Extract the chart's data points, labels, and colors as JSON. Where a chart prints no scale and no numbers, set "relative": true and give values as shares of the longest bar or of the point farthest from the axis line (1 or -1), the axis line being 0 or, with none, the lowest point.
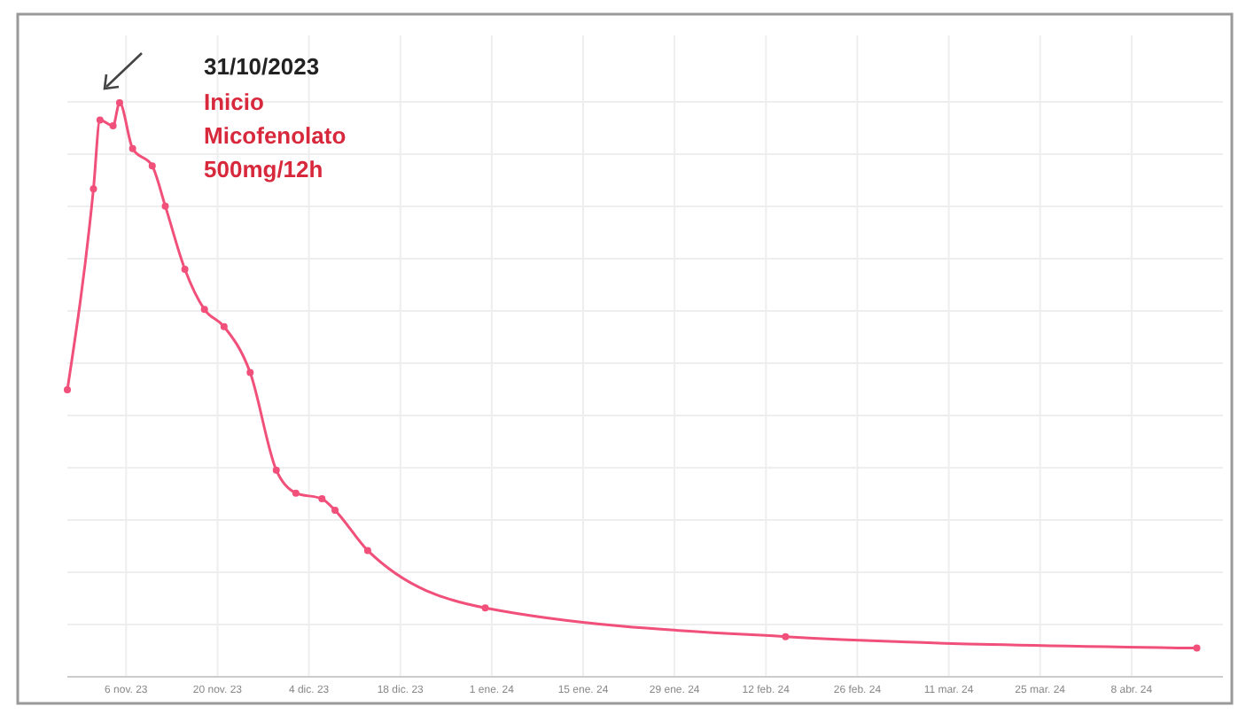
{
  "chart_data": {
    "type": "line",
    "relative": true,
    "x": [
      "2023-10-28",
      "2023-11-01",
      "2023-11-02",
      "2023-11-04",
      "2023-11-05",
      "2023-11-07",
      "2023-11-10",
      "2023-11-12",
      "2023-11-15",
      "2023-11-18",
      "2023-11-21",
      "2023-11-25",
      "2023-11-29",
      "2023-12-02",
      "2023-12-06",
      "2023-12-08",
      "2023-12-13",
      "2023-12-31",
      "2024-02-15",
      "2024-04-18"
    ],
    "series": [
      {
        "color": "#f0507a",
        "values": [
          0.5,
          0.85,
          0.97,
          0.96,
          1,
          0.92,
          0.89,
          0.82,
          0.71,
          0.64,
          0.61,
          0.53,
          0.36,
          0.32,
          0.31,
          0.29,
          0.22,
          0.12,
          0.07,
          0.05
        ]
      }
    ],
    "xlim": [
      "2023-10-28",
      "2024-04-22"
    ],
    "xticks": [
      {
        "value": "2023-11-06",
        "label": "6 nov. 23"
      },
      {
        "value": "2023-11-20",
        "label": "20 nov. 23"
      },
      {
        "value": "2023-12-04",
        "label": "4 dic. 23"
      },
      {
        "value": "2023-12-18",
        "label": "18 dic. 23"
      },
      {
        "value": "2024-01-01",
        "label": "1 ene. 24"
      },
      {
        "value": "2024-01-15",
        "label": "15 ene. 24"
      },
      {
        "value": "2024-01-29",
        "label": "29 ene. 24"
      },
      {
        "value": "2024-02-12",
        "label": "12 feb. 24"
      },
      {
        "value": "2024-02-26",
        "label": "26 feb. 24"
      },
      {
        "value": "2024-03-11",
        "label": "11 mar. 24"
      },
      {
        "value": "2024-03-25",
        "label": "25 mar. 24"
      },
      {
        "value": "2024-04-08",
        "label": "8 abr. 24"
      }
    ],
    "grid": true,
    "marker": "circle",
    "line_style": "solid",
    "annotations": [
      "31/10/2023",
      "Inicio Micofenolato 500mg/12h"
    ]
  }
}
